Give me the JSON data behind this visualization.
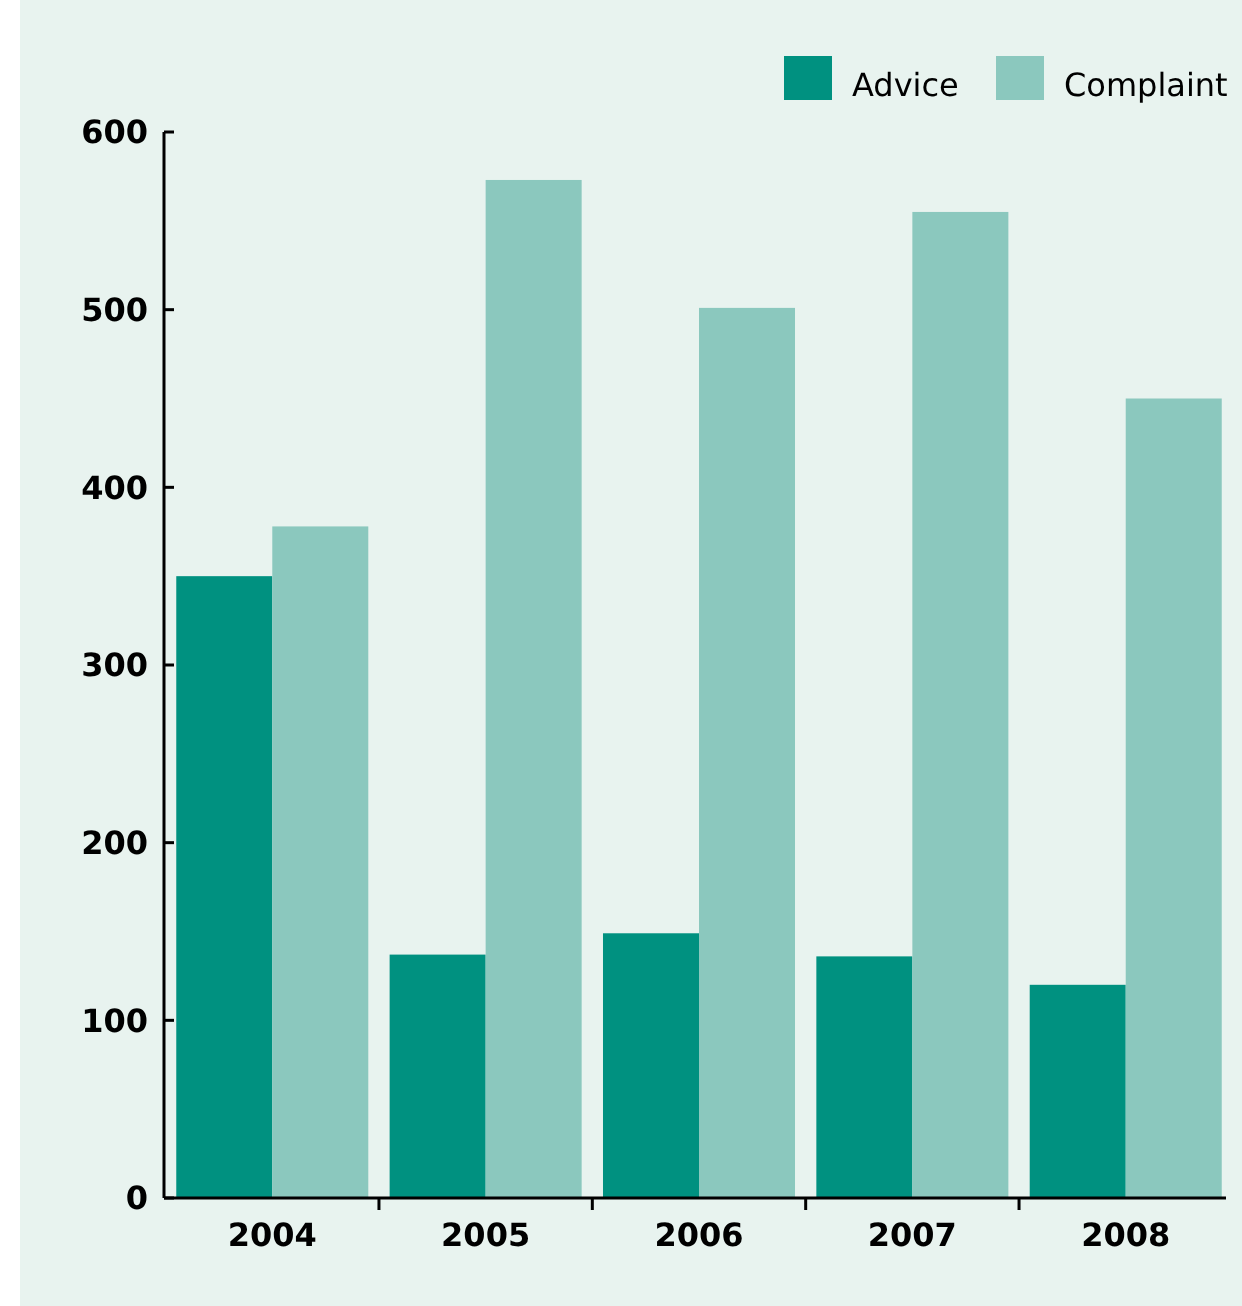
{
  "chart_data": {
    "type": "bar",
    "categories": [
      "2004",
      "2005",
      "2006",
      "2007",
      "2008"
    ],
    "series": [
      {
        "name": "Advice",
        "color": "#009180",
        "values": [
          350,
          137,
          149,
          136,
          120
        ]
      },
      {
        "name": "Complaint",
        "color": "#8bc8be",
        "values": [
          378,
          573,
          501,
          555,
          450
        ]
      }
    ],
    "ylim": [
      0,
      600
    ],
    "yticks": [
      0,
      100,
      200,
      300,
      400,
      500,
      600
    ],
    "grid": false,
    "legend": "top right"
  }
}
